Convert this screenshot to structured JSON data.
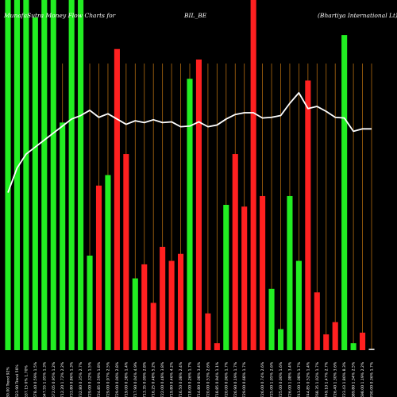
{
  "chart_data": {
    "type": "bar",
    "title": {
      "left": "MunafaSutra  Money Flow  Charts for",
      "symbol": "BIL_BE",
      "company": "(Bhartiya  International Lt) MunafaSutra.com"
    },
    "colors": {
      "background": "#000000",
      "positive": "#22ee22",
      "negative": "#ff2020",
      "grid": "#b06a10",
      "line": "#ffffff"
    },
    "grid": true,
    "bars": [
      {
        "label": "30.00 Trend 92%",
        "value": 100,
        "direction": "up"
      },
      {
        "label": "623.90 Trend 56%",
        "value": 100,
        "direction": "up"
      },
      {
        "label": "637.15 0% 1.70%",
        "value": 100,
        "direction": "up"
      },
      {
        "label": "678.40 0.59% 1.5%",
        "value": 95,
        "direction": "up"
      },
      {
        "label": "647.55 1.05% 1.3%",
        "value": 100,
        "direction": "up"
      },
      {
        "label": "672.05 0.95% 1.2%",
        "value": 100,
        "direction": "up"
      },
      {
        "label": "712.20 1.72% 2.2%",
        "value": 65,
        "direction": "up"
      },
      {
        "label": "733.80 0.86% 1.3%",
        "value": 100,
        "direction": "up"
      },
      {
        "label": "732.80 0.35% 2.7%",
        "value": 100,
        "direction": "up"
      },
      {
        "label": "729.00 0.32% 1.5%",
        "value": 27,
        "direction": "up"
      },
      {
        "label": "724.85 0.59% 1.8%",
        "value": 47,
        "direction": "down"
      },
      {
        "label": "729.00 0.97% 2.5%",
        "value": 50,
        "direction": "up"
      },
      {
        "label": "729.00 0.00% 2.8%",
        "value": 86,
        "direction": "down"
      },
      {
        "label": "719.00 0.38% 1.4%",
        "value": 56,
        "direction": "down"
      },
      {
        "label": "717.90 0.04% 4.9%",
        "value": 20.5,
        "direction": "up"
      },
      {
        "label": "713.35 0.09% 2.8%",
        "value": 24.5,
        "direction": "down"
      },
      {
        "label": "716.25 0.48% 5.2%",
        "value": 13.5,
        "direction": "down"
      },
      {
        "label": "722.00 0.48% 3.8%",
        "value": 29.5,
        "direction": "down"
      },
      {
        "label": "719.80 0.46% 4.2%",
        "value": 25.5,
        "direction": "down"
      },
      {
        "label": "716.50 0.08% 2.4%",
        "value": 27.5,
        "direction": "down"
      },
      {
        "label": "718.00 0.26% 1.7%",
        "value": 77.5,
        "direction": "up"
      },
      {
        "label": "714.80 0.08% 3.4%",
        "value": 83,
        "direction": "down"
      },
      {
        "label": "720.00 0.53% 2.6%",
        "value": 10.5,
        "direction": "down"
      },
      {
        "label": "718.85 0.94% 1.1%",
        "value": 2,
        "direction": "down"
      },
      {
        "label": "720.00 0.06% 1.7%",
        "value": 41.5,
        "direction": "up"
      },
      {
        "label": "726.90 0.19% 1.7%",
        "value": 56,
        "direction": "down"
      },
      {
        "label": "729.00 0.68% 1.7%",
        "value": 41,
        "direction": "down"
      },
      {
        "label": "",
        "value": 100,
        "direction": "down"
      },
      {
        "label": "726.00 0.74% 2.6%",
        "value": 44,
        "direction": "down"
      },
      {
        "label": "725.00 1.05% 2.6%",
        "value": 17.5,
        "direction": "up"
      },
      {
        "label": "725.00 0.00% 1.6%",
        "value": 6,
        "direction": "up"
      },
      {
        "label": "726.00 1.08% 3.4%",
        "value": 44,
        "direction": "up"
      },
      {
        "label": "741.00 1.08% 1.7%",
        "value": 25.5,
        "direction": "up"
      },
      {
        "label": "744.85 0.52% 1.4%",
        "value": 77,
        "direction": "down"
      },
      {
        "label": "768.35 1.02% 1.7%",
        "value": 16.5,
        "direction": "down"
      },
      {
        "label": "749.10 1.47% 2.7%",
        "value": 4.5,
        "direction": "down"
      },
      {
        "label": "726.40 1.30% 3.6%",
        "value": 8,
        "direction": "down"
      },
      {
        "label": "723.43 1.80% 8.3%",
        "value": 90,
        "direction": "up"
      },
      {
        "label": "689.80 1.34% 2.5%",
        "value": 2,
        "direction": "up"
      },
      {
        "label": "698.00 1.19% 2.2%",
        "value": 5,
        "direction": "down"
      },
      {
        "label": "700.00 0.36% 1.7%",
        "value": 0.4,
        "direction": "flat"
      }
    ],
    "line": {
      "name": "",
      "values": [
        45,
        52,
        56,
        58,
        60,
        62,
        64,
        66,
        67,
        68.5,
        66.5,
        67.5,
        66,
        64.5,
        65.5,
        65,
        65.8,
        65,
        65.2,
        63.8,
        64,
        65.2,
        63.8,
        64.3,
        66,
        67.3,
        67.8,
        67.8,
        66.3,
        66.5,
        67,
        70.5,
        73.5,
        69,
        69.6,
        68.2,
        66.5,
        66.3,
        62.5,
        63.2,
        63.2
      ]
    }
  }
}
